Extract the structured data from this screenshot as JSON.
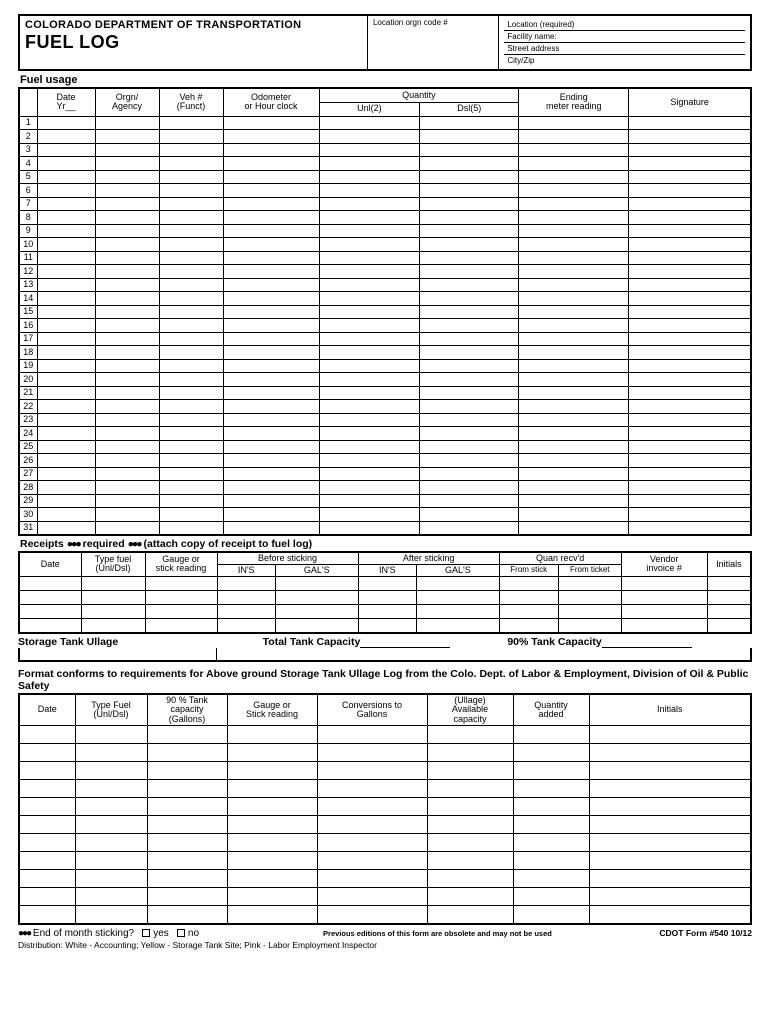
{
  "header": {
    "department": "COLORADO DEPARTMENT OF TRANSPORTATION",
    "title": "FUEL LOG",
    "loc_orgn": "Location orgn code #",
    "loc_req": "Location (required)",
    "facility": "Facility name:",
    "street": "Street address",
    "cityzip": "City/Zip"
  },
  "fuel_usage": {
    "label": "Fuel usage",
    "cols": {
      "date": "Date",
      "yr": "Yr__",
      "orgn": "Orgn/",
      "agency": "Agency",
      "veh": "Veh #",
      "funct": "(Funct)",
      "odom1": "Odometer",
      "odom2": "or Hour clock",
      "qty": "Quantity",
      "unl": "Unl(2)",
      "dsl": "Dsl(5)",
      "ending1": "Ending",
      "ending2": "meter reading",
      "sig": "Signature"
    },
    "row_count": 31
  },
  "receipts": {
    "note_pre": "Receipts",
    "note_mid": "required",
    "note_post": "(attach copy of receipt to fuel log)",
    "cols": {
      "date": "Date",
      "type1": "Type fuel",
      "type2": "(Unl/Dsl)",
      "gauge1": "Gauge or",
      "gauge2": "stick reading",
      "before": "Before sticking",
      "after": "After sticking",
      "ins": "IN'S",
      "gals": "GAL'S",
      "quan": "Quan recv'd",
      "from_stick": "From stick",
      "from_ticket": "From ticket",
      "vendor1": "Vendor",
      "vendor2": "invoice #",
      "init": "Initials"
    }
  },
  "tank_bar": {
    "storage": "Storage Tank Ullage",
    "total": "Total Tank Capacity",
    "ninety": "90% Tank Capacity"
  },
  "format_note": "Format conforms to requirements for Above ground Storage Tank Ullage Log from the Colo. Dept. of Labor & Employment, Division of Oil & Public Safety",
  "ullage": {
    "cols": {
      "date": "Date",
      "type1": "Type Fuel",
      "type2": "(Unl/Dsl)",
      "cap1": "90 % Tank",
      "cap2": "capacity",
      "cap3": "(Gallons)",
      "gauge1": "Gauge or",
      "gauge2": "Stick reading",
      "conv1": "Conversions to",
      "conv2": "Gallons",
      "ull1": "(Ullage)",
      "ull2": "Available",
      "ull3": "capacity",
      "qty1": "Quantity",
      "qty2": "added",
      "init": "Initials"
    },
    "row_count": 11
  },
  "footer": {
    "eom": "End of month sticking?",
    "yes": "yes",
    "no": "no",
    "prev": "Previous editions of this form are obsolete and may not be used",
    "form": "CDOT Form #540   10/12",
    "dist": "Distribution: White - Accounting; Yellow - Storage Tank Site; Pink - Labor Employment Inspector"
  }
}
